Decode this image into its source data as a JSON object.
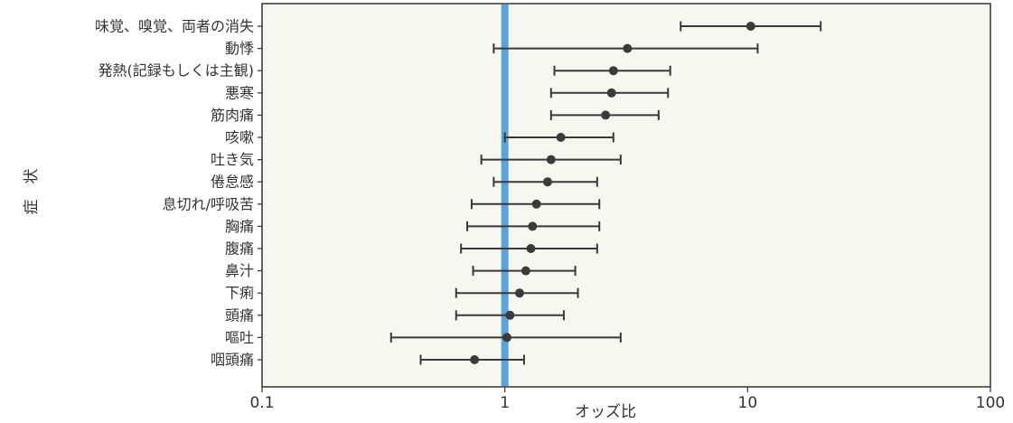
{
  "chart_data": {
    "type": "scatter",
    "xlabel": "オッズ比",
    "ylabel": "症　状",
    "x_scale": "log",
    "xlim": [
      0.1,
      100
    ],
    "x_ticks": [
      0.1,
      1,
      10,
      100
    ],
    "x_tick_labels": [
      "0.1",
      "1",
      "10",
      "100"
    ],
    "reference_line_x": 1,
    "grid": false,
    "colors": {
      "plot_background": "#f7f6ef",
      "reference_line": "#5ba3dc",
      "marker": "#3a3a3a",
      "frame": "#333333"
    },
    "categories": [
      "味覚、嗅覚、両者の消失",
      "動悸",
      "発熱(記録もしくは主観)",
      "悪寒",
      "筋肉痛",
      "咳嗽",
      "吐き気",
      "倦怠感",
      "息切れ/呼吸苦",
      "胸痛",
      "腹痛",
      "鼻汁",
      "下痢",
      "頭痛",
      "嘔吐",
      "咽頭痛"
    ],
    "series": [
      {
        "odds_ratio": [
          10.3,
          3.2,
          2.8,
          2.75,
          2.6,
          1.7,
          1.55,
          1.5,
          1.35,
          1.3,
          1.28,
          1.22,
          1.15,
          1.05,
          1.02,
          0.75
        ],
        "ci_lower": [
          5.3,
          0.9,
          1.6,
          1.55,
          1.55,
          1.0,
          0.8,
          0.9,
          0.73,
          0.7,
          0.66,
          0.74,
          0.63,
          0.63,
          0.34,
          0.45
        ],
        "ci_upper": [
          20.0,
          11.0,
          4.8,
          4.7,
          4.3,
          2.8,
          3.0,
          2.4,
          2.45,
          2.45,
          2.4,
          1.95,
          2.0,
          1.75,
          3.0,
          1.2
        ]
      }
    ]
  }
}
